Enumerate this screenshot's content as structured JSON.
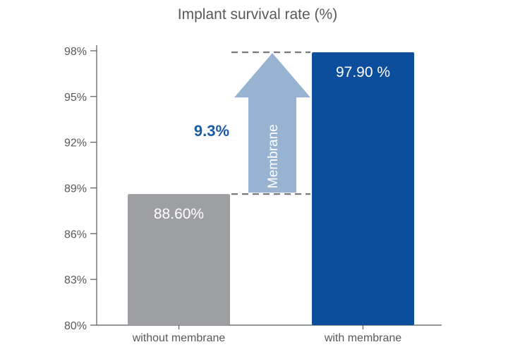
{
  "chart_data": {
    "type": "bar",
    "title": "Implant survival rate (%)",
    "categories": [
      "without membrane",
      "with membrane"
    ],
    "values": [
      88.6,
      97.9
    ],
    "value_labels": [
      "88.60%",
      "97.90 %"
    ],
    "bar_colors": [
      "#9d9fa2",
      "#0d4e9c"
    ],
    "ylim": [
      80,
      98
    ],
    "yticks": [
      80,
      83,
      86,
      89,
      92,
      95,
      98
    ],
    "ytick_labels": [
      "80%",
      "83%",
      "86%",
      "89%",
      "92%",
      "95%",
      "98%"
    ],
    "grid": false,
    "annotation": {
      "difference_label": "9.3%",
      "difference_color": "#1a5aa6",
      "arrow_label": "Membrane",
      "arrow_color": "#98b3d1",
      "dashed_line_color": "#7a7a7a"
    }
  }
}
